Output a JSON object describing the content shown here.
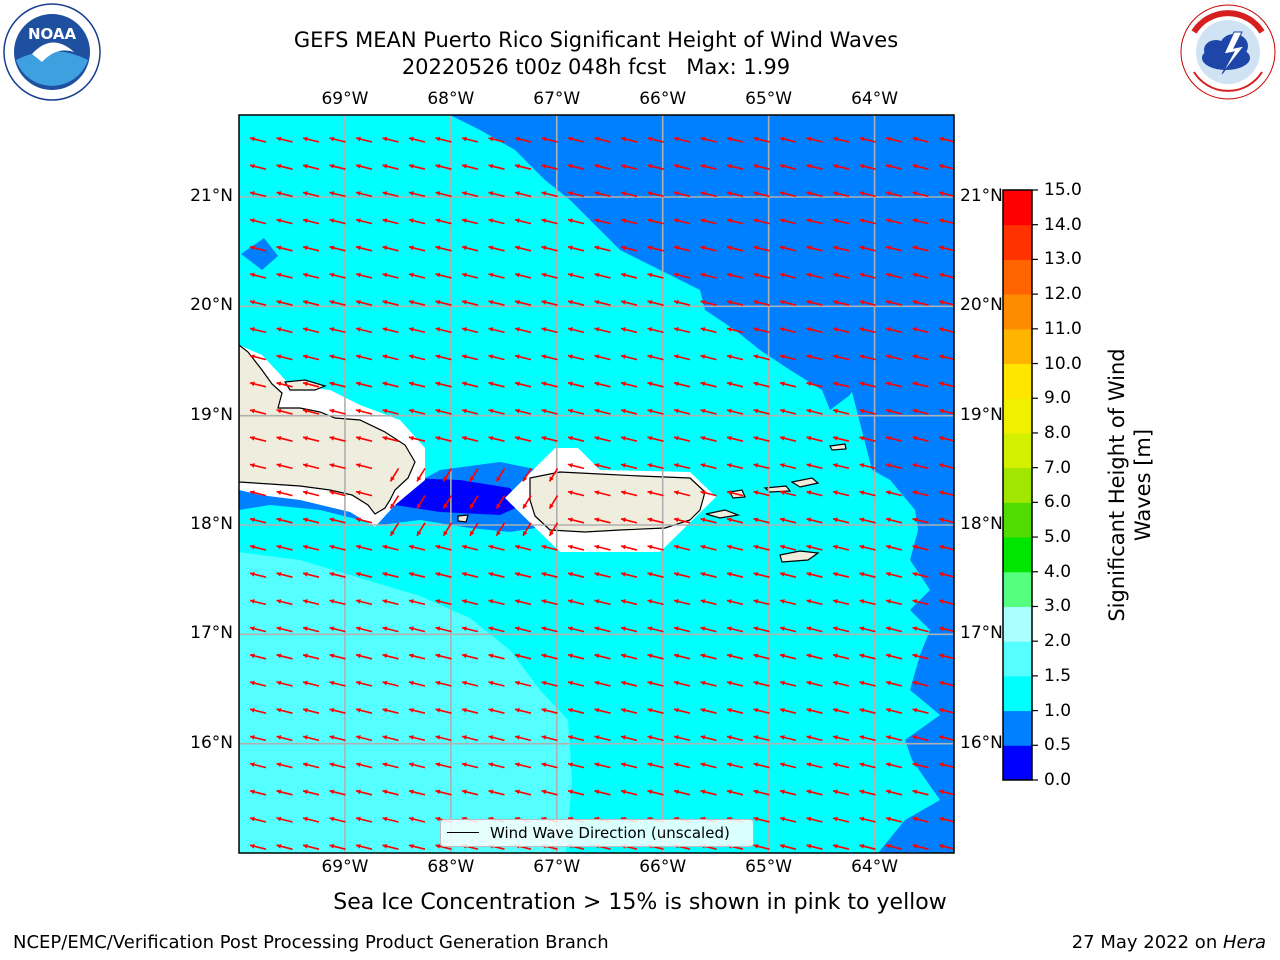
{
  "title_line1": "GEFS MEAN Puerto Rico Significant Height of Wind Waves",
  "title_line2": "20220526 t00z 048h fcst   Max: 1.99",
  "logos": {
    "left": {
      "icon": "noaa-logo",
      "text": "NOAA",
      "ring_text": "NATIONAL OCEANIC AND ATMOSPHERIC ADMINISTRATION · U.S. DEPARTMENT OF COMMERCE"
    },
    "right": {
      "icon": "nws-logo",
      "ring_text": "NATIONAL WEATHER SERVICE"
    }
  },
  "map": {
    "lon_labels": [
      "69°W",
      "68°W",
      "67°W",
      "66°W",
      "65°W",
      "64°W"
    ],
    "lat_labels": [
      "21°N",
      "20°N",
      "19°N",
      "18°N",
      "17°N",
      "16°N"
    ],
    "lon_values": [
      -69,
      -68,
      -67,
      -66,
      -65,
      -64
    ],
    "lat_values": [
      21,
      20,
      19,
      18,
      17,
      16
    ],
    "lon_range": [
      -70.0,
      -63.25
    ],
    "lat_range": [
      15.0,
      21.75
    ],
    "land_color": "#efedde",
    "coast_color": "#000000",
    "grid_color": "#b0b0b0",
    "arrow_color": "#ff0000",
    "legend_label": "Wind Wave Direction (unscaled)"
  },
  "colorbar": {
    "label": "Significant Height of Wind Waves [m]",
    "ticks": [
      "0.0",
      "0.5",
      "1.0",
      "1.5",
      "2.0",
      "3.0",
      "4.0",
      "5.0",
      "6.0",
      "7.0",
      "8.0",
      "9.0",
      "10.0",
      "11.0",
      "12.0",
      "13.0",
      "14.0",
      "15.0"
    ],
    "colors": [
      "#0000ff",
      "#0080ff",
      "#00ffff",
      "#55ffff",
      "#aaffff",
      "#55ff80",
      "#00e600",
      "#50dc00",
      "#a0e600",
      "#d2f000",
      "#f0f000",
      "#ffe600",
      "#ffb400",
      "#ff8c00",
      "#ff6400",
      "#ff3200",
      "#ff0000"
    ]
  },
  "note": "Sea Ice Concentration > 15% is shown in pink to yellow",
  "footer_left": "NCEP/EMC/Verification Post Processing Product Generation Branch",
  "footer_right_date": "27 May 2022 on ",
  "footer_right_host": "Hera"
}
